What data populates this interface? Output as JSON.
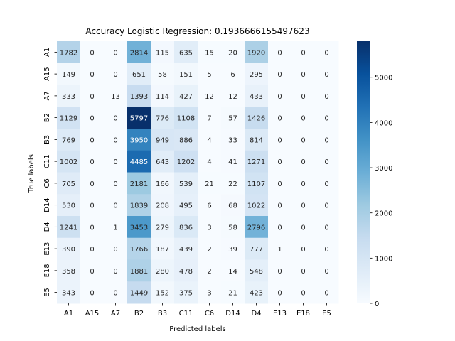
{
  "chart_data": {
    "type": "heatmap",
    "title": "Accuracy Logistic Regression: 0.1936666155497623",
    "xlabel": "Predicted labels",
    "ylabel": "True labels",
    "x_categories": [
      "A1",
      "A15",
      "A7",
      "B2",
      "B3",
      "C11",
      "C6",
      "D14",
      "D4",
      "E13",
      "E18",
      "E5"
    ],
    "y_categories": [
      "A1",
      "A15",
      "A7",
      "B2",
      "B3",
      "C11",
      "C6",
      "D14",
      "D4",
      "E13",
      "E18",
      "E5"
    ],
    "values": [
      [
        1782,
        0,
        0,
        2814,
        115,
        635,
        15,
        20,
        1920,
        0,
        0,
        0
      ],
      [
        149,
        0,
        0,
        651,
        58,
        151,
        5,
        6,
        295,
        0,
        0,
        0
      ],
      [
        333,
        0,
        13,
        1393,
        114,
        427,
        12,
        12,
        433,
        0,
        0,
        0
      ],
      [
        1129,
        0,
        0,
        5797,
        776,
        1108,
        7,
        57,
        1426,
        0,
        0,
        0
      ],
      [
        769,
        0,
        0,
        3950,
        949,
        886,
        4,
        33,
        814,
        0,
        0,
        0
      ],
      [
        1002,
        0,
        0,
        4485,
        643,
        1202,
        4,
        41,
        1271,
        0,
        0,
        0
      ],
      [
        705,
        0,
        0,
        2181,
        166,
        539,
        21,
        22,
        1107,
        0,
        0,
        0
      ],
      [
        530,
        0,
        0,
        1839,
        208,
        495,
        6,
        68,
        1022,
        0,
        0,
        0
      ],
      [
        1241,
        0,
        1,
        3453,
        279,
        836,
        3,
        58,
        2796,
        0,
        0,
        0
      ],
      [
        390,
        0,
        0,
        1766,
        187,
        439,
        2,
        39,
        777,
        1,
        0,
        0
      ],
      [
        358,
        0,
        0,
        1881,
        280,
        478,
        2,
        14,
        548,
        0,
        0,
        0
      ],
      [
        343,
        0,
        0,
        1449,
        152,
        375,
        3,
        21,
        423,
        0,
        0,
        0
      ]
    ],
    "colorscale": "Blues",
    "vmin": 0,
    "vmax": 5797,
    "colorbar_ticks": [
      0,
      1000,
      2000,
      3000,
      4000,
      5000
    ],
    "grid": false
  }
}
